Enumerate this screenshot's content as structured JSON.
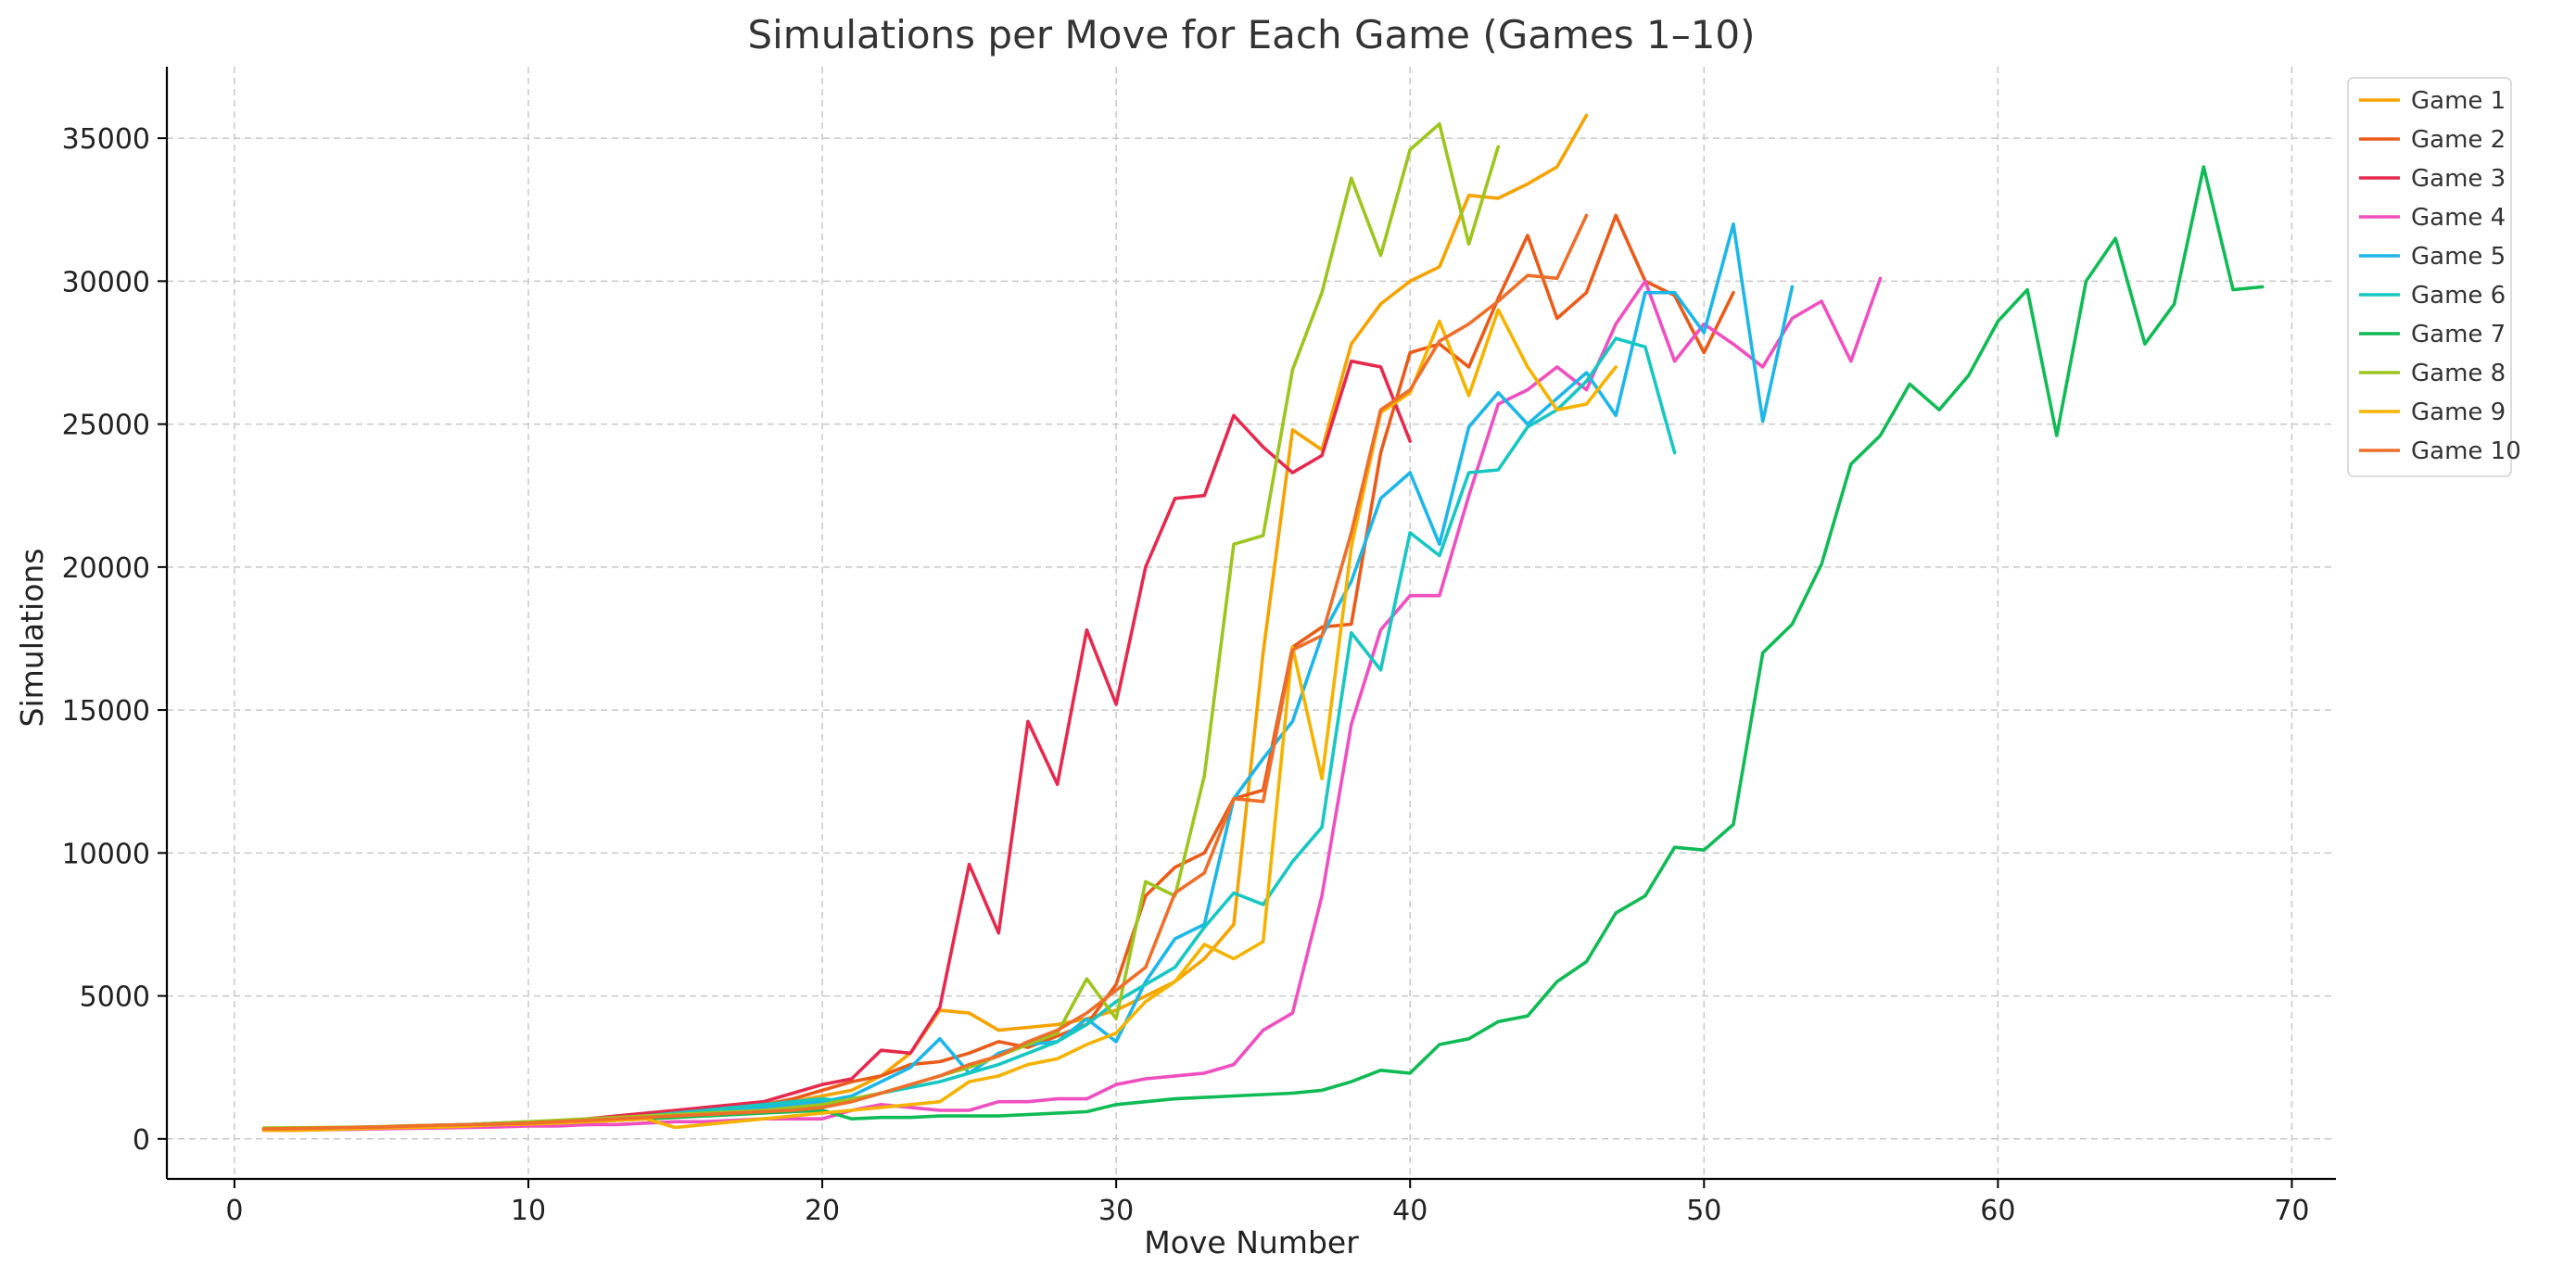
{
  "chart_data": {
    "type": "line",
    "title": "Simulations per Move for Each Game (Games 1–10)",
    "xlabel": "Move Number",
    "ylabel": "Simulations",
    "xlim": [
      -2.3,
      71.5
    ],
    "ylim": [
      -1400,
      37500
    ],
    "x_ticks": [
      0,
      10,
      20,
      30,
      40,
      50,
      60,
      70
    ],
    "y_ticks": [
      0,
      5000,
      10000,
      15000,
      20000,
      25000,
      30000,
      35000
    ],
    "grid": true,
    "legend_position": "top-right",
    "series": [
      {
        "name": "Game 1",
        "color": "#f5a300",
        "values": [
          300,
          320,
          330,
          360,
          380,
          400,
          430,
          450,
          480,
          500,
          550,
          600,
          650,
          700,
          750,
          850,
          1000,
          1100,
          1300,
          1500,
          1700,
          2200,
          3000,
          4500,
          4400,
          3800,
          3900,
          4000,
          4200,
          4500,
          5000,
          5500,
          6300,
          7500,
          17000,
          24800,
          24100,
          27800,
          29200,
          30000,
          30500,
          33000,
          32900,
          33400,
          34000,
          35800
        ]
      },
      {
        "name": "Game 2",
        "color": "#ea5b1a",
        "values": [
          350,
          350,
          380,
          380,
          420,
          450,
          420,
          450,
          500,
          520,
          550,
          600,
          650,
          700,
          800,
          900,
          1050,
          1200,
          1400,
          1700,
          2000,
          2200,
          2600,
          2700,
          3000,
          3400,
          3200,
          3600,
          4000,
          5400,
          8500,
          9500,
          10000,
          11900,
          12200,
          17200,
          17900,
          18000,
          24000,
          27500,
          27800,
          27000,
          29400,
          31600,
          28700,
          29600,
          32300,
          30000,
          29500,
          27500,
          29600
        ]
      },
      {
        "name": "Game 3",
        "color": "#e6294e",
        "values": [
          350,
          350,
          370,
          380,
          400,
          450,
          480,
          500,
          550,
          550,
          600,
          700,
          800,
          900,
          1000,
          1100,
          1200,
          1300,
          1600,
          1900,
          2100,
          3100,
          3000,
          4600,
          9600,
          7200,
          14600,
          12400,
          17800,
          15200,
          20000,
          22400,
          22500,
          25300,
          24200,
          23300,
          23900,
          27200,
          27000,
          24400
        ]
      },
      {
        "name": "Game 4",
        "color": "#f04fbf",
        "values": [
          300,
          300,
          320,
          330,
          350,
          370,
          380,
          400,
          420,
          450,
          450,
          500,
          500,
          550,
          600,
          600,
          650,
          700,
          700,
          700,
          1000,
          1200,
          1100,
          1000,
          1000,
          1300,
          1300,
          1400,
          1400,
          1900,
          2100,
          2200,
          2300,
          2600,
          3800,
          4400,
          8500,
          14500,
          17800,
          19000,
          19000,
          22500,
          25700,
          26200,
          27000,
          26200,
          28500,
          30000,
          27200,
          28500,
          27800,
          27000,
          28700,
          29300,
          27200,
          30100
        ]
      },
      {
        "name": "Game 5",
        "color": "#1cb6e8",
        "values": [
          320,
          330,
          350,
          380,
          400,
          420,
          450,
          480,
          500,
          550,
          600,
          650,
          700,
          750,
          800,
          900,
          1000,
          1100,
          1200,
          1300,
          1500,
          2000,
          2500,
          3500,
          2300,
          3000,
          3300,
          3400,
          4200,
          3400,
          5500,
          7000,
          7500,
          11900,
          13300,
          14600,
          17600,
          19500,
          22400,
          23300,
          20800,
          24900,
          26100,
          25000,
          25900,
          26800,
          25300,
          29600,
          29600,
          28200,
          32000,
          25100,
          29800
        ]
      },
      {
        "name": "Game 6",
        "color": "#16c7c2",
        "values": [
          350,
          350,
          370,
          400,
          420,
          450,
          450,
          500,
          520,
          550,
          600,
          650,
          700,
          800,
          900,
          1000,
          1100,
          1200,
          1300,
          1400,
          1300,
          1600,
          1800,
          2000,
          2300,
          2600,
          3000,
          3400,
          4000,
          4800,
          5400,
          6000,
          7400,
          8600,
          8200,
          9700,
          10900,
          17700,
          16400,
          21200,
          20400,
          23300,
          23400,
          24900,
          25500,
          26500,
          28000,
          27700,
          24000
        ]
      },
      {
        "name": "Game 7",
        "color": "#10bb55",
        "values": [
          350,
          370,
          380,
          400,
          420,
          450,
          480,
          500,
          550,
          600,
          600,
          650,
          700,
          700,
          750,
          800,
          850,
          900,
          950,
          1000,
          700,
          750,
          750,
          800,
          800,
          800,
          850,
          900,
          950,
          1200,
          1300,
          1400,
          1450,
          1500,
          1550,
          1600,
          1700,
          2000,
          2400,
          2300,
          3300,
          3500,
          4100,
          4300,
          5500,
          6200,
          7900,
          8500,
          10200,
          10100,
          11000,
          17000,
          18000,
          20100,
          23600,
          24600,
          26400,
          25500,
          26700,
          28600,
          29700,
          24600,
          30000,
          31500,
          27800,
          29200,
          34000,
          29700,
          29800
        ]
      },
      {
        "name": "Game 8",
        "color": "#9dc51e",
        "values": [
          380,
          390,
          400,
          410,
          430,
          460,
          480,
          500,
          550,
          600,
          650,
          700,
          750,
          800,
          850,
          900,
          950,
          1000,
          1100,
          1200,
          1400,
          1600,
          1900,
          2200,
          2500,
          2900,
          3300,
          3700,
          5600,
          4200,
          9000,
          8500,
          12700,
          20800,
          21100,
          26900,
          29600,
          33600,
          30900,
          34600,
          35500,
          31300,
          34700
        ]
      },
      {
        "name": "Game 9",
        "color": "#f5b300",
        "values": [
          300,
          300,
          320,
          350,
          380,
          400,
          420,
          450,
          500,
          520,
          550,
          600,
          650,
          700,
          400,
          500,
          600,
          700,
          800,
          900,
          1000,
          1100,
          1200,
          1300,
          2000,
          2200,
          2600,
          2800,
          3300,
          3700,
          4800,
          5500,
          6800,
          6300,
          6900,
          17200,
          12600,
          20700,
          25400,
          26100,
          28600,
          26000,
          29000,
          27000,
          25500,
          25700,
          27000
        ]
      },
      {
        "name": "Game 10",
        "color": "#ee6e2a",
        "values": [
          350,
          360,
          380,
          400,
          420,
          450,
          480,
          500,
          520,
          550,
          600,
          650,
          700,
          750,
          800,
          850,
          900,
          950,
          1000,
          1100,
          1300,
          1600,
          1900,
          2200,
          2600,
          2900,
          3400,
          3800,
          4400,
          5200,
          6000,
          8600,
          9300,
          11900,
          11800,
          17100,
          17600,
          21200,
          25500,
          26200,
          27900,
          28500,
          29300,
          30200,
          30100,
          32300
        ]
      }
    ]
  }
}
